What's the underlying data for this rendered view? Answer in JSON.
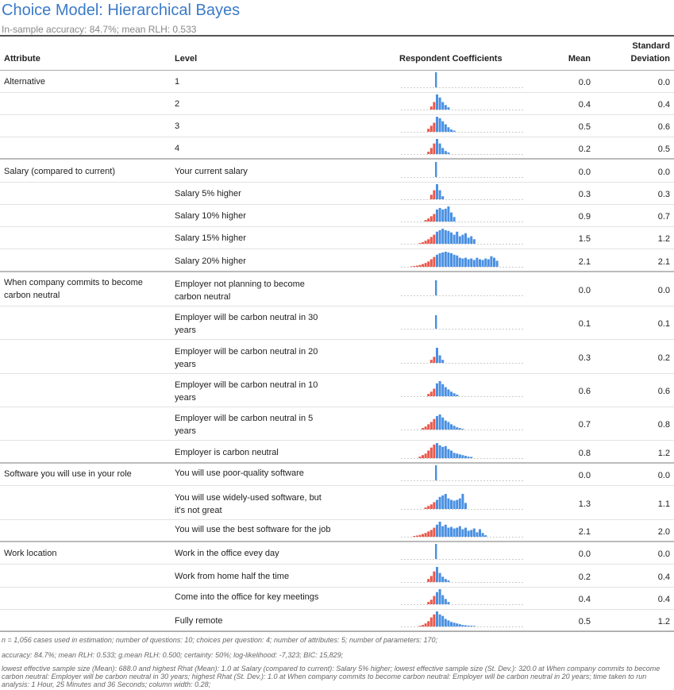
{
  "title": "Choice Model: Hierarchical Bayes",
  "subtitle": "In-sample accuracy: 84.7%; mean RLH: 0.533",
  "headers": {
    "attribute": "Attribute",
    "level": "Level",
    "coefficients": "Respondent Coefficients",
    "mean": "Mean",
    "sd_line1": "Standard",
    "sd_line2": "Deviation"
  },
  "colors": {
    "positive": "#4a90e2",
    "negative": "#e8574a",
    "title": "#3b7ac8"
  },
  "chart_data": {
    "type": "table",
    "columns": [
      "Attribute",
      "Level",
      "Respondent Coefficients",
      "Mean",
      "Standard Deviation"
    ],
    "rows": [
      {
        "attribute": "Alternative",
        "level": "1",
        "mean": "0.0",
        "sd": "0.0"
      },
      {
        "attribute": "",
        "level": "2",
        "mean": "0.4",
        "sd": "0.4"
      },
      {
        "attribute": "",
        "level": "3",
        "mean": "0.5",
        "sd": "0.6"
      },
      {
        "attribute": "",
        "level": "4",
        "mean": "0.2",
        "sd": "0.5"
      },
      {
        "attribute": "Salary (compared to current)",
        "level": "Your current salary",
        "mean": "0.0",
        "sd": "0.0"
      },
      {
        "attribute": "",
        "level": "Salary 5% higher",
        "mean": "0.3",
        "sd": "0.3"
      },
      {
        "attribute": "",
        "level": "Salary 10% higher",
        "mean": "0.9",
        "sd": "0.7"
      },
      {
        "attribute": "",
        "level": "Salary 15% higher",
        "mean": "1.5",
        "sd": "1.2"
      },
      {
        "attribute": "",
        "level": "Salary 20% higher",
        "mean": "2.1",
        "sd": "2.1"
      },
      {
        "attribute": "When company commits to become carbon neutral",
        "level": "Employer not planning to become carbon neutral",
        "mean": "0.0",
        "sd": "0.0"
      },
      {
        "attribute": "",
        "level": "Employer will be carbon neutral in 30 years",
        "mean": "0.1",
        "sd": "0.1"
      },
      {
        "attribute": "",
        "level": "Employer will be carbon neutral in 20 years",
        "mean": "0.3",
        "sd": "0.2"
      },
      {
        "attribute": "",
        "level": "Employer will be carbon neutral in 10 years",
        "mean": "0.6",
        "sd": "0.6"
      },
      {
        "attribute": "",
        "level": "Employer will be carbon neutral in 5 years",
        "mean": "0.7",
        "sd": "0.8"
      },
      {
        "attribute": "",
        "level": "Employer is carbon neutral",
        "mean": "0.8",
        "sd": "1.2"
      },
      {
        "attribute": "Software you will use in your role",
        "level": "You will use poor-quality software",
        "mean": "0.0",
        "sd": "0.0"
      },
      {
        "attribute": "",
        "level": "You will use widely-used software, but it's not great",
        "mean": "1.3",
        "sd": "1.1"
      },
      {
        "attribute": "",
        "level": "You will use the best software for the job",
        "mean": "2.1",
        "sd": "2.0"
      },
      {
        "attribute": "Work location",
        "level": "Work in the office evey day",
        "mean": "0.0",
        "sd": "0.0"
      },
      {
        "attribute": "",
        "level": "Work from home half the time",
        "mean": "0.2",
        "sd": "0.4"
      },
      {
        "attribute": "",
        "level": "Come into the office for key meetings",
        "mean": "0.4",
        "sd": "0.4"
      },
      {
        "attribute": "",
        "level": "Fully remote",
        "mean": "0.5",
        "sd": "1.2"
      }
    ]
  },
  "footer": {
    "line1": "n = 1,056 cases used in estimation; number of questions: 10; choices per question: 4; number of attributes: 5; number of parameters: 170;",
    "line2": "accuracy: 84.7%; mean RLH: 0.533; g.mean RLH: 0.500; certainty: 50%; log-likelihood: -7,323; BIC: 15,829;",
    "line3": "lowest effective sample size (Mean): 688.0 and highest Rhat (Mean): 1.0 at Salary (compared to current): Salary 5% higher; lowest effective sample size (St. Dev.): 320.0 at When company commits to become carbon neutral: Employer will be carbon neutral in 30 years; highest Rhat (St. Dev.): 1.0 at When company commits to become carbon neutral: Employer will be carbon neutral in 20 years; time taken to run analysis: 1 Hour, 25 Minutes and 36 Seconds; column width: 0.28;"
  }
}
